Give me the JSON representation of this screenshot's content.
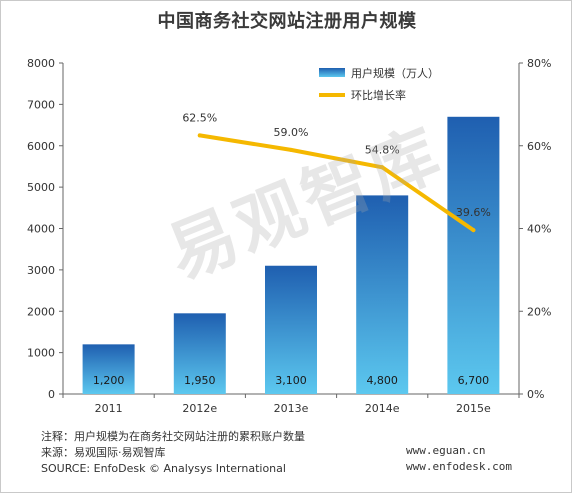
{
  "title": "中国商务社交网站注册用户规模",
  "chart_data": {
    "type": "bar",
    "title": "中国商务社交网站注册用户规模",
    "categories": [
      "2011",
      "2012e",
      "2013e",
      "2014e",
      "2015e"
    ],
    "series": [
      {
        "name": "用户规模（万人）",
        "type": "bar",
        "axis": "left",
        "values": [
          1200,
          1950,
          3100,
          4800,
          6700
        ],
        "value_labels": [
          "1,200",
          "1,950",
          "3,100",
          "4,800",
          "6,700"
        ]
      },
      {
        "name": "环比增长率",
        "type": "line",
        "axis": "right",
        "x": [
          "2012e",
          "2013e",
          "2014e",
          "2015e"
        ],
        "values": [
          62.5,
          59.0,
          54.8,
          39.6
        ],
        "value_labels": [
          "62.5%",
          "59.0%",
          "54.8%",
          "39.6%"
        ]
      }
    ],
    "y_left": {
      "lim": [
        0,
        8000
      ],
      "ticks": [
        "0",
        "1000",
        "2000",
        "3000",
        "4000",
        "5000",
        "6000",
        "7000",
        "8000"
      ]
    },
    "y_right": {
      "lim": [
        0,
        80
      ],
      "ticks": [
        "0%",
        "20%",
        "40%",
        "60%",
        "80%"
      ]
    },
    "legend_position": "top-right",
    "grid": false,
    "colors": {
      "bar_top": "#1f5fb0",
      "bar_bottom": "#5cc8ef",
      "line": "#f5b800",
      "axis": "#666666"
    }
  },
  "footnotes": {
    "note": "注释：用户规模为在商务社交网站注册的累积账户数量",
    "source_cn": "来源：易观国际·易观智库",
    "source_en": "SOURCE: EnfoDesk © Analysys International"
  },
  "sites": {
    "eguan": "www.eguan.cn",
    "enfodesk": "www.enfodesk.com"
  },
  "watermark": "易观智库"
}
